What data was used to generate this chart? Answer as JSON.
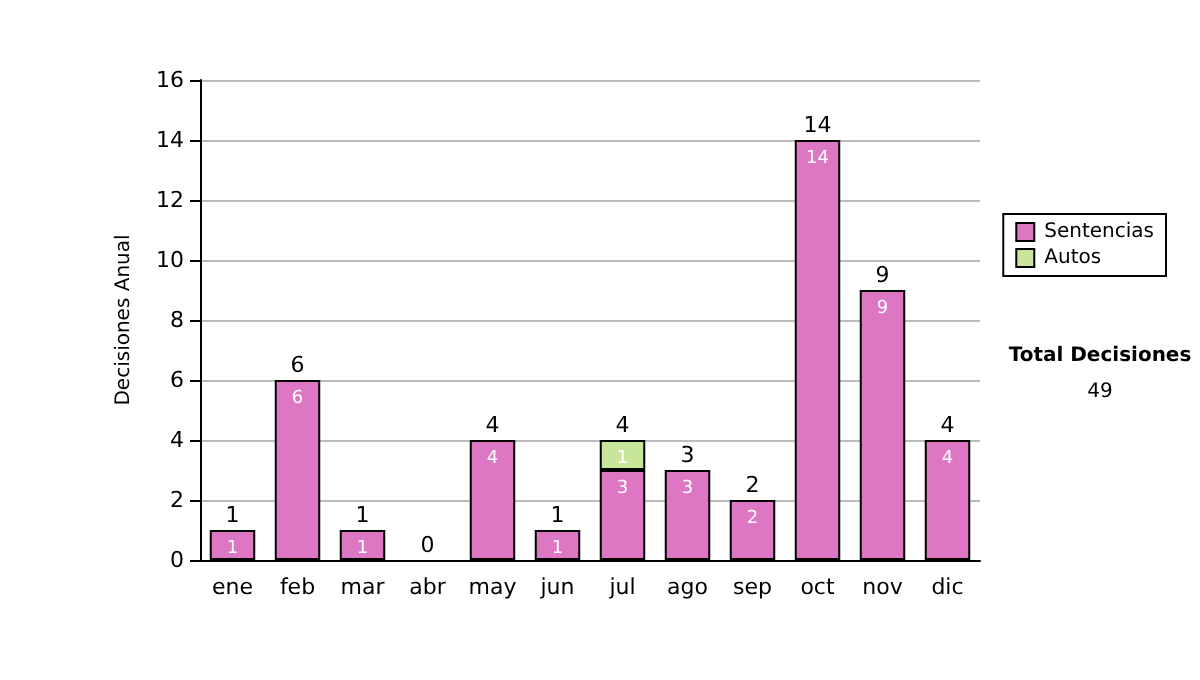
{
  "chart_data": {
    "type": "bar",
    "ylabel": "Decisiones Anual",
    "categories": [
      "ene",
      "feb",
      "mar",
      "abr",
      "may",
      "jun",
      "jul",
      "ago",
      "sep",
      "oct",
      "nov",
      "dic"
    ],
    "series": [
      {
        "name": "Sentencias",
        "color": "#dd77c4",
        "values": [
          1,
          6,
          1,
          0,
          4,
          1,
          3,
          3,
          2,
          14,
          9,
          4
        ],
        "value_labels": [
          "1",
          "6",
          "1",
          null,
          "4",
          "1",
          "3",
          "3",
          "2",
          "14",
          "9",
          "4"
        ]
      },
      {
        "name": "Autos",
        "color": "#c8e69a",
        "values": [
          0,
          0,
          0,
          0,
          0,
          0,
          1,
          0,
          0,
          0,
          0,
          0
        ],
        "value_labels": [
          null,
          null,
          null,
          null,
          null,
          null,
          "1",
          null,
          null,
          null,
          null,
          null
        ]
      }
    ],
    "stacked": true,
    "totals": [
      "1",
      "6",
      "1",
      "0",
      "4",
      "1",
      "4",
      "3",
      "2",
      "14",
      "9",
      "4"
    ],
    "ylim": [
      0,
      16
    ],
    "yticks": [
      0,
      2,
      4,
      6,
      8,
      10,
      12,
      14,
      16
    ],
    "grid": "y",
    "legend": "right",
    "annotations": [
      "Total Decisiones",
      "49"
    ]
  }
}
